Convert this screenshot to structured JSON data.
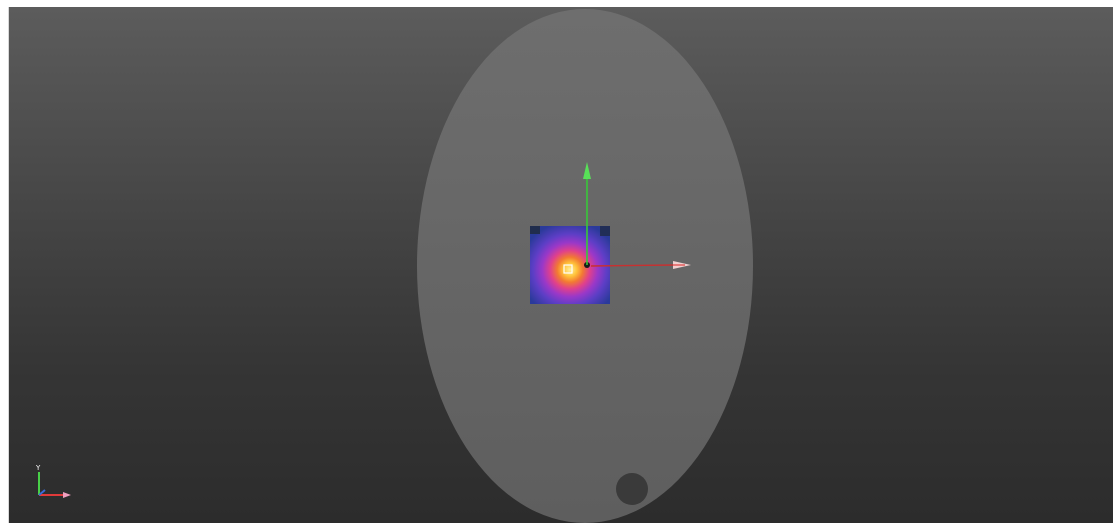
{
  "viewport": {
    "mode": "3d-scene",
    "background_top": "#5c5c5c",
    "background_bottom": "#2c2c2c"
  },
  "scene": {
    "disc_color": "#6a6a6a",
    "hole_color": "#3a3a3a",
    "heatmap_colormap": [
      "#3a2a8a",
      "#5b3dbf",
      "#b03cc0",
      "#e8408a",
      "#f07a3a",
      "#ffd23a"
    ],
    "gizmo": {
      "x_axis_color": "#e0302a",
      "y_axis_color": "#3ad23a",
      "z_axis_color": "#3a6ad8"
    }
  },
  "orientation_triad": {
    "y_label": "Y",
    "x_label": "",
    "z_label": ""
  }
}
